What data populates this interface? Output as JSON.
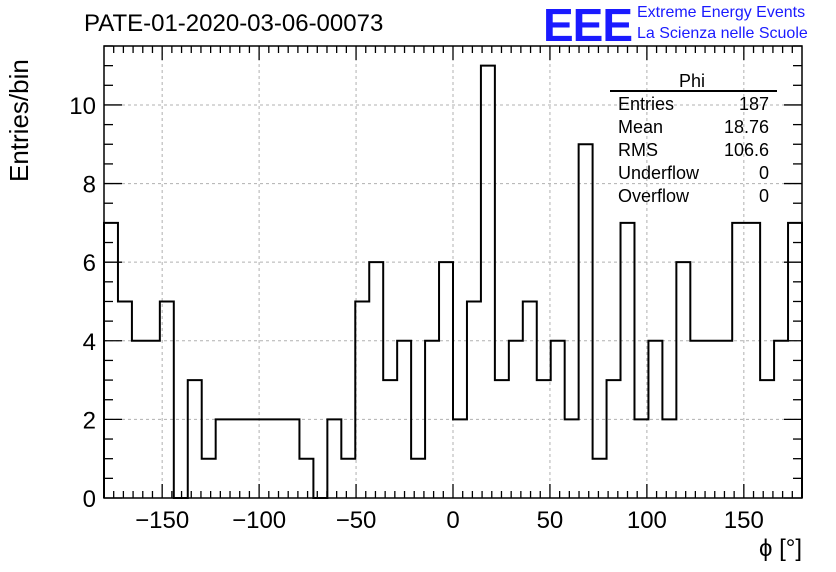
{
  "header": {
    "title": "PATE-01-2020-03-06-00073",
    "logo_text": "EEE",
    "tagline_1": "Extreme Energy Events",
    "tagline_2": "La Scienza nelle Scuole"
  },
  "colors": {
    "brand": "#1a1aff",
    "grid": "#b0b0b0",
    "line": "#000000"
  },
  "chart_data": {
    "type": "bar",
    "subtype": "step-histogram",
    "xlabel": "ϕ [°]",
    "ylabel": "Entries/bin",
    "xlim": [
      -180,
      180
    ],
    "ylim": [
      0,
      11.5
    ],
    "grid": true,
    "x_ticks": [
      -150,
      -100,
      -50,
      0,
      50,
      100,
      150
    ],
    "x_tick_labels": [
      "−150",
      "−100",
      "−50",
      "0",
      "50",
      "100",
      "150"
    ],
    "y_ticks": [
      0,
      2,
      4,
      6,
      8,
      10
    ],
    "y_tick_labels": [
      "0",
      "2",
      "4",
      "6",
      "8",
      "10"
    ],
    "bin_width": 7.2,
    "values": [
      7,
      5,
      4,
      4,
      5,
      0,
      3,
      1,
      2,
      2,
      2,
      2,
      2,
      2,
      1,
      0,
      2,
      1,
      5,
      6,
      3,
      4,
      1,
      4,
      6,
      2,
      5,
      11,
      3,
      4,
      5,
      3,
      4,
      2,
      9,
      1,
      3,
      7,
      2,
      4,
      2,
      6,
      4,
      4,
      4,
      7,
      7,
      3,
      4,
      7
    ],
    "stats_box": {
      "title": "Phi",
      "rows": [
        {
          "label": "Entries",
          "value": "187"
        },
        {
          "label": "Mean",
          "value": "18.76"
        },
        {
          "label": "RMS",
          "value": "106.6"
        },
        {
          "label": "Underflow",
          "value": "0"
        },
        {
          "label": "Overflow",
          "value": "0"
        }
      ],
      "placement": "top-right"
    }
  }
}
